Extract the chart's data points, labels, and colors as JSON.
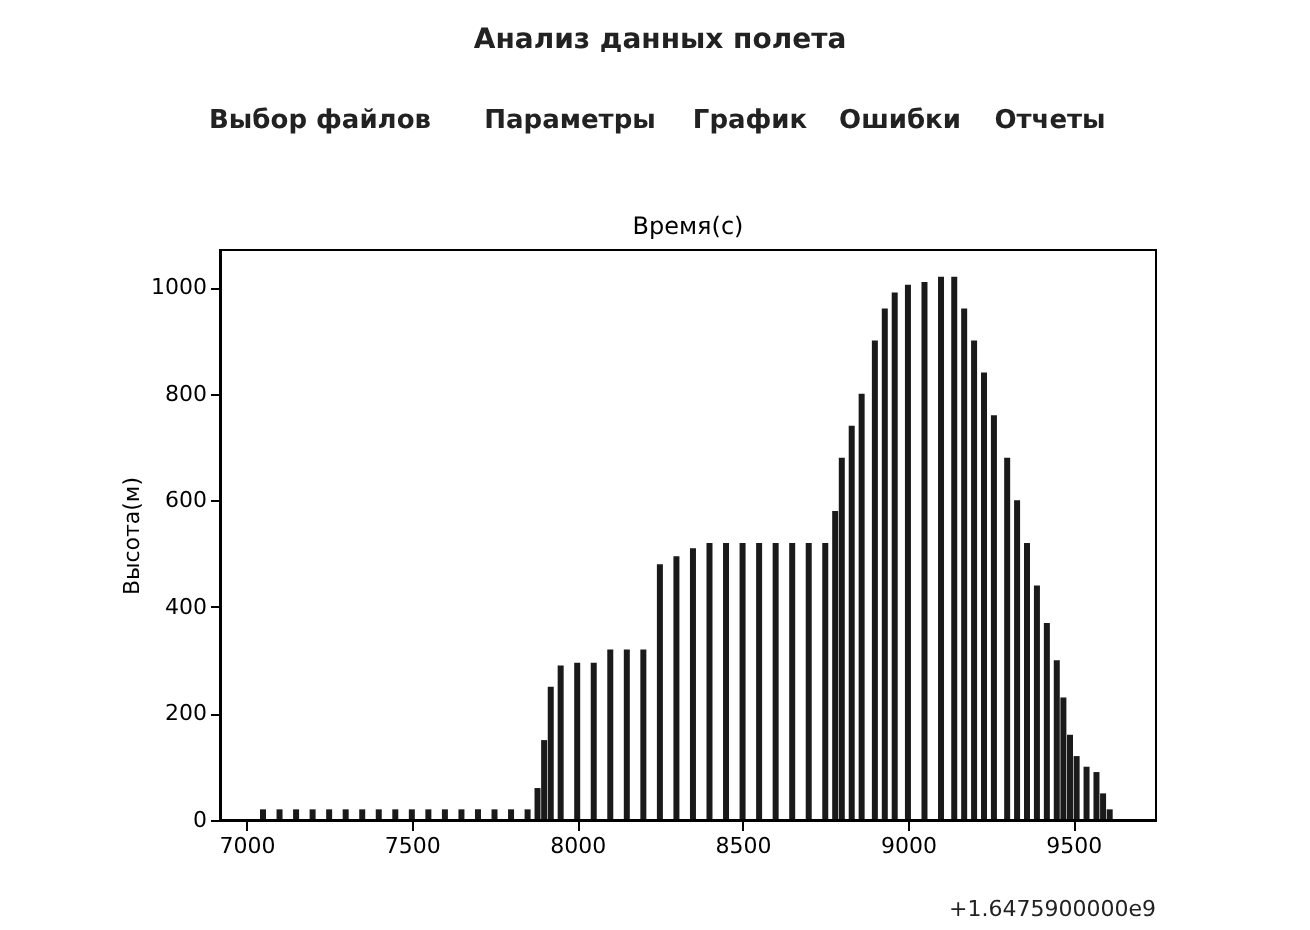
{
  "chart_data": {
    "type": "bar",
    "title": "Время(с)",
    "ylabel": "Высота(м)",
    "annotations": [
      "Анализ данных полета",
      "Выбор файлов",
      "Параметры",
      "График",
      "Ошибки",
      "Отчеты",
      "+1.6475900000e9"
    ],
    "x": [
      7050,
      7100,
      7150,
      7200,
      7250,
      7300,
      7350,
      7400,
      7450,
      7500,
      7550,
      7600,
      7650,
      7700,
      7750,
      7800,
      7850,
      7880,
      7900,
      7920,
      7950,
      8000,
      8050,
      8100,
      8150,
      8200,
      8250,
      8300,
      8350,
      8400,
      8450,
      8500,
      8550,
      8600,
      8650,
      8700,
      8750,
      8780,
      8800,
      8830,
      8860,
      8900,
      8930,
      8960,
      9000,
      9050,
      9100,
      9140,
      9170,
      9200,
      9230,
      9260,
      9300,
      9330,
      9360,
      9390,
      9420,
      9450,
      9470,
      9490,
      9510,
      9540,
      9570,
      9590,
      9610
    ],
    "series": [
      {
        "color": "#1a1a1a",
        "values": [
          20,
          20,
          20,
          20,
          20,
          20,
          20,
          20,
          20,
          20,
          20,
          20,
          20,
          20,
          20,
          20,
          20,
          60,
          150,
          250,
          290,
          295,
          295,
          320,
          320,
          320,
          480,
          495,
          510,
          520,
          520,
          520,
          520,
          520,
          520,
          520,
          520,
          580,
          680,
          740,
          800,
          900,
          960,
          990,
          1005,
          1010,
          1020,
          1020,
          960,
          900,
          840,
          760,
          680,
          600,
          520,
          440,
          370,
          300,
          230,
          160,
          120,
          100,
          90,
          50,
          20
        ]
      }
    ],
    "xlim": [
      6920,
      9750
    ],
    "xticks": [
      7000,
      7500,
      8000,
      8500,
      9000,
      9500
    ],
    "ylim": [
      0,
      1070
    ],
    "yticks": [
      0,
      200,
      400,
      600,
      800,
      1000
    ],
    "grid": false
  }
}
